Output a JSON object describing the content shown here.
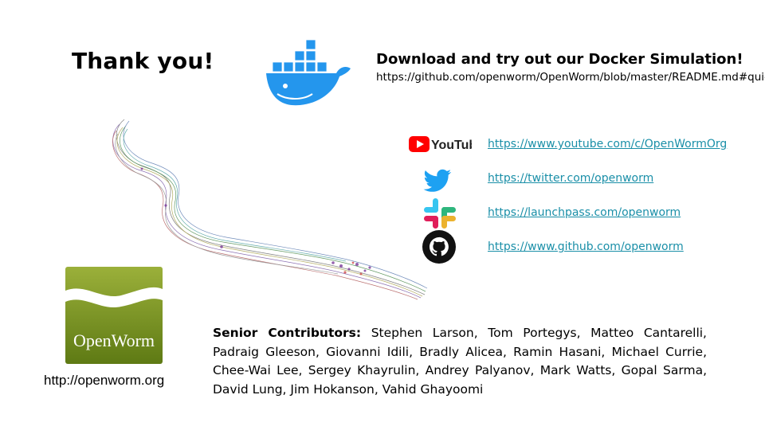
{
  "slide": {
    "title": "Thank you!",
    "docker": {
      "heading": "Download and try out our Docker Simulation!",
      "url": "https://github.com/openworm/OpenWorm/blob/master/README.md#quickstart",
      "icon": "docker-whale-icon"
    },
    "links": [
      {
        "icon": "youtube-icon",
        "label": "YouTube",
        "url": "https://www.youtube.com/c/OpenWormOrg"
      },
      {
        "icon": "twitter-icon",
        "url": "https://twitter.com/openworm"
      },
      {
        "icon": "slack-icon",
        "url": "https://launchpass.com/openworm"
      },
      {
        "icon": "github-icon",
        "url": "https://www.github.com/openworm"
      }
    ],
    "openworm_logo_text": "OpenWorm",
    "openworm_url": "http://openworm.org",
    "contributors_label": "Senior Contributors:",
    "contributors_text": " Stephen Larson, Tom Portegys, Matteo Cantarelli, Padraig Gleeson, Giovanni Idili, Bradly Alicea, Ramin Hasani, Michael Currie, Chee-Wai Lee, Sergey Khayrulin, Andrey Palyanov, Mark Watts, Gopal Sarma, David Lung, Jim Hokanson, Vahid Ghayoomi",
    "colors": {
      "link": "#1a8fa8",
      "docker_blue": "#2496ed",
      "youtube_red": "#ff0000",
      "twitter_blue": "#1da1f2",
      "openworm_green": "#6f8a1e"
    }
  }
}
